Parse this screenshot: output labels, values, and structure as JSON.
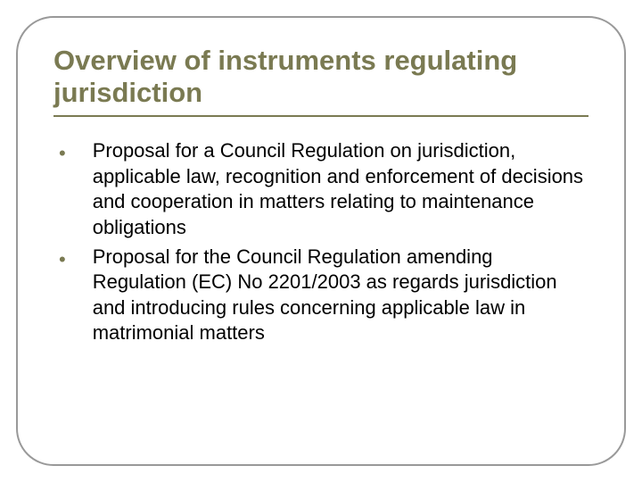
{
  "slide": {
    "title": "Overview of instruments regulating jurisdiction",
    "title_color": "#7a7a52",
    "title_fontsize": 31,
    "underline_color": "#7a7a52",
    "frame_border_color": "#999999",
    "frame_border_radius": 42,
    "background_color": "#ffffff",
    "bullets": [
      {
        "text": "Proposal for a Council Regulation on jurisdiction, applicable law, recognition and enforcement of decisions and cooperation in matters relating to maintenance obligations"
      },
      {
        "text": "Proposal for the Council Regulation amending Regulation (EC) No 2201/2003 as regards jurisdiction and introducing rules concerning applicable law in matrimonial matters"
      }
    ],
    "bullet_color": "#7a7a52",
    "body_text_color": "#000000",
    "body_fontsize": 22
  }
}
